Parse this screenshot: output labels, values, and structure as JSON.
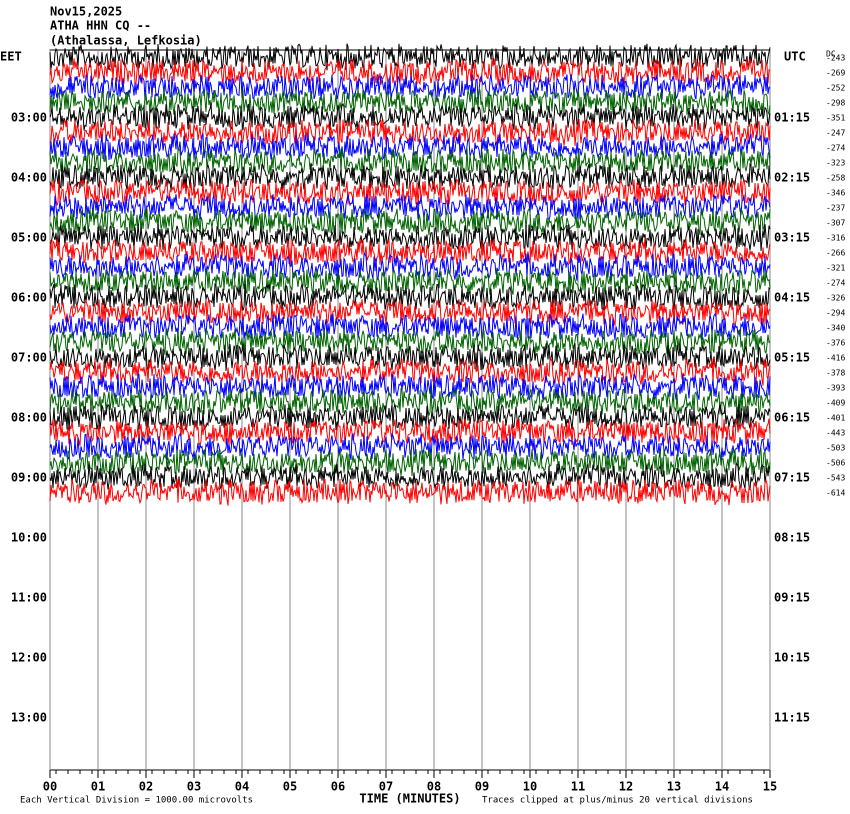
{
  "chart_data": {
    "type": "helicorder",
    "title_lines": [
      "Nov15,2025",
      "ATHA HHN CQ --",
      "(Athalassa, Lefkosia)"
    ],
    "left_axis_name": "EET",
    "right_axis_name": "UTC",
    "dc_header": "DC",
    "left_labels": [
      "03:00",
      "04:00",
      "05:00",
      "06:00",
      "07:00",
      "08:00",
      "09:00",
      "10:00",
      "11:00",
      "12:00",
      "13:00"
    ],
    "right_labels": [
      "01:15",
      "02:15",
      "03:15",
      "04:15",
      "05:15",
      "06:15",
      "07:15",
      "08:15",
      "09:15",
      "10:15",
      "11:15"
    ],
    "dc_offsets": [
      -243,
      -269,
      -252,
      -298,
      -351,
      -247,
      -274,
      -323,
      -258,
      -346,
      -237,
      -307,
      -316,
      -266,
      -321,
      -274,
      -326,
      -294,
      -340,
      -376,
      -416,
      -378,
      -393,
      -409,
      -401,
      -443,
      -503,
      -506,
      -543,
      -614
    ],
    "colors": [
      "#000000",
      "#ff0000",
      "#0000ff",
      "#006400"
    ],
    "xlim": [
      0,
      15
    ],
    "xticks": [
      {
        "value": 0,
        "label": "00"
      },
      {
        "value": 1,
        "label": "01"
      },
      {
        "value": 2,
        "label": "02"
      },
      {
        "value": 3,
        "label": "03"
      },
      {
        "value": 4,
        "label": "04"
      },
      {
        "value": 5,
        "label": "05"
      },
      {
        "value": 6,
        "label": "06"
      },
      {
        "value": 7,
        "label": "07"
      },
      {
        "value": 8,
        "label": "08"
      },
      {
        "value": 9,
        "label": "09"
      },
      {
        "value": 10,
        "label": "10"
      },
      {
        "value": 11,
        "label": "11"
      },
      {
        "value": 12,
        "label": "12"
      },
      {
        "value": 13,
        "label": "13"
      },
      {
        "value": 14,
        "label": "14"
      },
      {
        "value": 15,
        "label": "15"
      }
    ],
    "xlabel": "TIME (MINUTES)",
    "scale_note": "Each Vertical Division = 1000.00 microvolts",
    "clip_note": "Traces clipped at plus/minus 20 vertical divisions",
    "grid": true
  }
}
